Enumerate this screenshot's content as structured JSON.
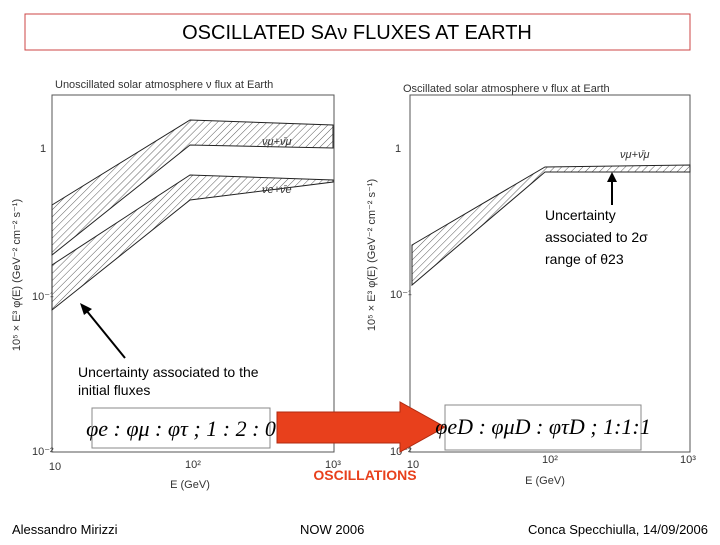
{
  "title": "OSCILLATED SAν FLUXES AT EARTH",
  "left_plot": {
    "title": "Unoscillated solar atmosphere ν flux at Earth",
    "y_label": "10⁵ × E³ φ(E) (GeV⁻² cm⁻² s⁻¹)",
    "x_label": "E (GeV)",
    "yticks": [
      "1",
      "10⁻¹",
      "10⁻²"
    ],
    "xticks": [
      "10",
      "10²",
      "10³"
    ],
    "curve_labels": [
      "νμ+ν̄μ",
      "νe+ν̄e"
    ]
  },
  "right_plot": {
    "title": "Oscillated solar atmosphere ν flux at Earth",
    "y_label": "10⁵ × E³ φ(E) (GeV⁻² cm⁻² s⁻¹)",
    "x_label": "E (GeV)",
    "yticks": [
      "1",
      "10⁻¹",
      "10⁻²"
    ],
    "xticks": [
      "10",
      "10²",
      "10³"
    ],
    "curve_labels": [
      "νμ+ν̄μ"
    ]
  },
  "right_annotation": [
    "Uncertainty",
    "associated to 2σ",
    "range of θ23"
  ],
  "left_annotation": [
    "Uncertainty  associated to the",
    "initial fluxes"
  ],
  "left_formula": "φe : φμ : φτ  ;  1 : 2 : 0",
  "right_formula": "φeD : φμD : φτD  ;  1:1:1",
  "arrow_label": "OSCILLATIONS",
  "footer": {
    "author": "Alessandro Mirizzi",
    "event": "NOW 2006",
    "place_date": "Conca Specchiulla, 14/09/2006"
  }
}
